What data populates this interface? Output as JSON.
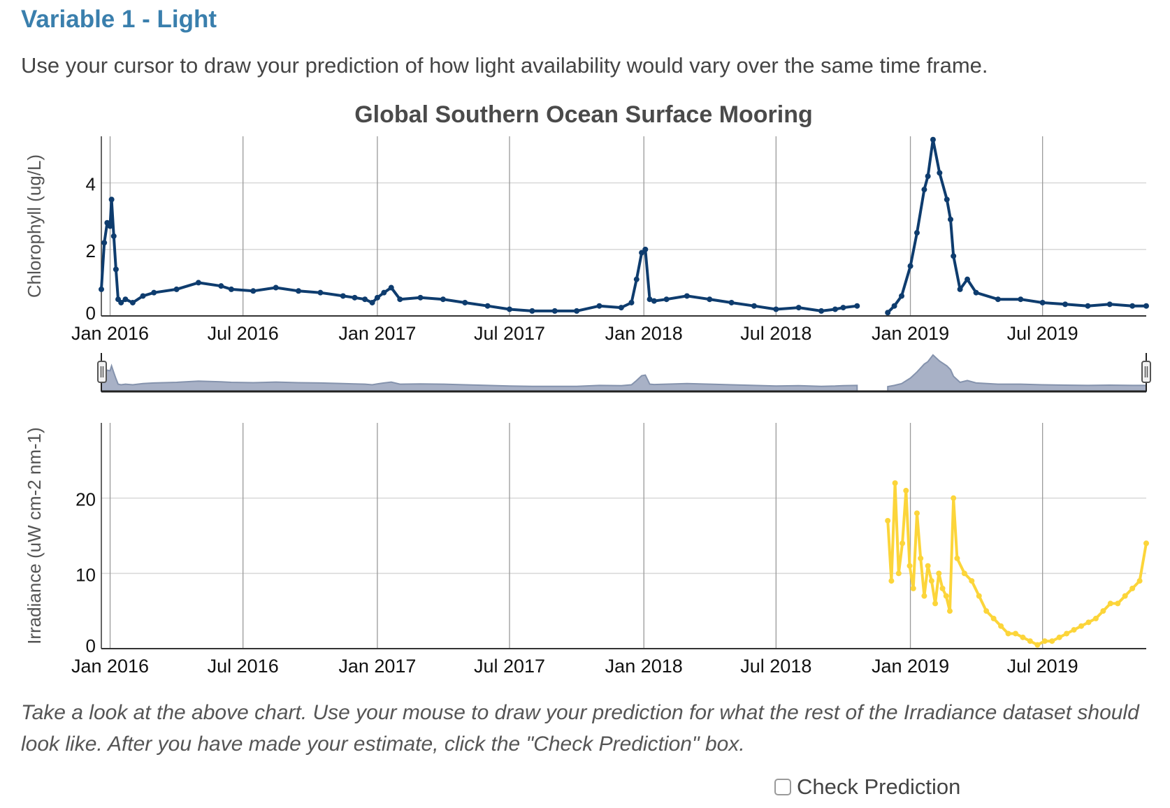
{
  "heading": "Variable 1 - Light",
  "instructions": "Use your cursor to draw your prediction of how light availability would vary over the same time frame.",
  "note": "Take a look at the above chart. Use your mouse to draw your prediction for what the rest of the Irradiance dataset should look like. After you have made your estimate, click the \"Check Prediction\" box.",
  "checkbox": {
    "label": "Check Prediction",
    "checked": false
  },
  "colors": {
    "heading": "#3a7fad",
    "chlorophyll": "#0e3c6e",
    "irradiance": "#fcd53a",
    "navigator_fill": "#a8b1c6",
    "navigator_line": "#8593ad"
  },
  "chart_data": [
    {
      "type": "line",
      "title": "Global Southern Ocean Surface Mooring",
      "ylabel": "Chlorophyll (ug/L)",
      "ylim": [
        0,
        5.4
      ],
      "y_ticks": [
        "0",
        "2",
        "4"
      ],
      "x_ticks": [
        "Jan 2016",
        "Jul 2016",
        "Jan 2017",
        "Jul 2017",
        "Jan 2018",
        "Jul 2018",
        "Jan 2019",
        "Jul 2019"
      ],
      "xlim": [
        "2015-12-20",
        "2019-11-20"
      ],
      "grid": true,
      "series": [
        {
          "x": [
            "2015-12-20",
            "2015-12-24",
            "2015-12-28",
            "2016-01-01",
            "2016-01-03",
            "2016-01-06",
            "2016-01-09",
            "2016-01-12",
            "2016-01-16",
            "2016-01-22",
            "2016-02-01",
            "2016-02-15",
            "2016-03-01",
            "2016-04-01",
            "2016-05-01",
            "2016-06-01",
            "2016-06-15",
            "2016-07-15",
            "2016-08-15",
            "2016-09-15",
            "2016-10-15",
            "2016-11-15",
            "2016-12-01",
            "2016-12-15",
            "2016-12-25",
            "2017-01-01",
            "2017-01-10",
            "2017-01-20",
            "2017-02-01",
            "2017-03-01",
            "2017-04-01",
            "2017-05-01",
            "2017-06-01",
            "2017-07-01",
            "2017-08-01",
            "2017-09-01",
            "2017-10-01",
            "2017-11-01",
            "2017-12-01",
            "2017-12-15",
            "2017-12-22",
            "2017-12-29",
            "2018-01-03",
            "2018-01-09",
            "2018-01-15",
            "2018-02-01",
            "2018-03-01",
            "2018-04-01",
            "2018-05-01",
            "2018-06-01",
            "2018-07-01",
            "2018-08-01",
            "2018-09-01",
            "2018-09-20",
            "2018-10-01",
            "2018-10-20"
          ],
          "y": [
            0.8,
            2.2,
            2.8,
            2.7,
            3.5,
            2.4,
            1.4,
            0.5,
            0.4,
            0.5,
            0.4,
            0.6,
            0.7,
            0.8,
            1.0,
            0.9,
            0.8,
            0.75,
            0.85,
            0.75,
            0.7,
            0.6,
            0.55,
            0.5,
            0.4,
            0.55,
            0.7,
            0.85,
            0.5,
            0.55,
            0.5,
            0.4,
            0.3,
            0.2,
            0.15,
            0.15,
            0.15,
            0.3,
            0.25,
            0.4,
            1.1,
            1.9,
            2.0,
            0.5,
            0.45,
            0.5,
            0.6,
            0.5,
            0.4,
            0.3,
            0.2,
            0.25,
            0.15,
            0.2,
            0.25,
            0.3
          ]
        },
        {
          "x": [
            "2018-12-01",
            "2018-12-10",
            "2018-12-20",
            "2019-01-01",
            "2019-01-10",
            "2019-01-20",
            "2019-01-25",
            "2019-02-01",
            "2019-02-10",
            "2019-02-20",
            "2019-02-25",
            "2019-03-01",
            "2019-03-10",
            "2019-03-20",
            "2019-04-01",
            "2019-05-01",
            "2019-06-01",
            "2019-07-01",
            "2019-08-01",
            "2019-09-01",
            "2019-10-01",
            "2019-11-01",
            "2019-11-20"
          ],
          "y": [
            0.1,
            0.3,
            0.6,
            1.5,
            2.5,
            3.8,
            4.2,
            5.3,
            4.3,
            3.5,
            2.9,
            1.8,
            0.8,
            1.1,
            0.7,
            0.5,
            0.5,
            0.4,
            0.35,
            0.3,
            0.35,
            0.3,
            0.3
          ]
        }
      ]
    },
    {
      "type": "line",
      "ylabel": "Irradiance (uW cm-2 nm-1)",
      "ylim": [
        0,
        30
      ],
      "y_ticks": [
        "0",
        "10",
        "20"
      ],
      "x_ticks": [
        "Jan 2016",
        "Jul 2016",
        "Jan 2017",
        "Jul 2017",
        "Jan 2018",
        "Jul 2018",
        "Jan 2019",
        "Jul 2019"
      ],
      "xlim": [
        "2015-12-20",
        "2019-11-20"
      ],
      "grid": true,
      "series": [
        {
          "x": [
            "2018-12-01",
            "2018-12-06",
            "2018-12-11",
            "2018-12-16",
            "2018-12-21",
            "2018-12-26",
            "2018-12-31",
            "2019-01-05",
            "2019-01-10",
            "2019-01-15",
            "2019-01-20",
            "2019-01-25",
            "2019-01-30",
            "2019-02-04",
            "2019-02-09",
            "2019-02-14",
            "2019-02-19",
            "2019-02-24",
            "2019-03-01",
            "2019-03-06",
            "2019-03-16",
            "2019-03-26",
            "2019-04-05",
            "2019-04-15",
            "2019-04-25",
            "2019-05-05",
            "2019-05-15",
            "2019-05-25",
            "2019-06-04",
            "2019-06-14",
            "2019-06-24",
            "2019-07-04",
            "2019-07-14",
            "2019-07-24",
            "2019-08-03",
            "2019-08-13",
            "2019-08-23",
            "2019-09-02",
            "2019-09-12",
            "2019-09-22",
            "2019-10-02",
            "2019-10-12",
            "2019-10-22",
            "2019-11-01",
            "2019-11-11",
            "2019-11-20"
          ],
          "y": [
            17,
            9,
            22,
            10,
            14,
            21,
            11,
            8,
            18,
            12,
            7,
            11,
            9,
            6,
            10,
            8,
            7,
            5,
            20,
            12,
            10,
            9,
            7,
            5,
            4,
            3,
            2,
            2,
            1.5,
            1,
            0.5,
            1,
            1,
            1.5,
            2,
            2.5,
            3,
            3.5,
            4,
            5,
            6,
            6,
            7,
            8,
            9,
            14
          ]
        }
      ]
    }
  ]
}
